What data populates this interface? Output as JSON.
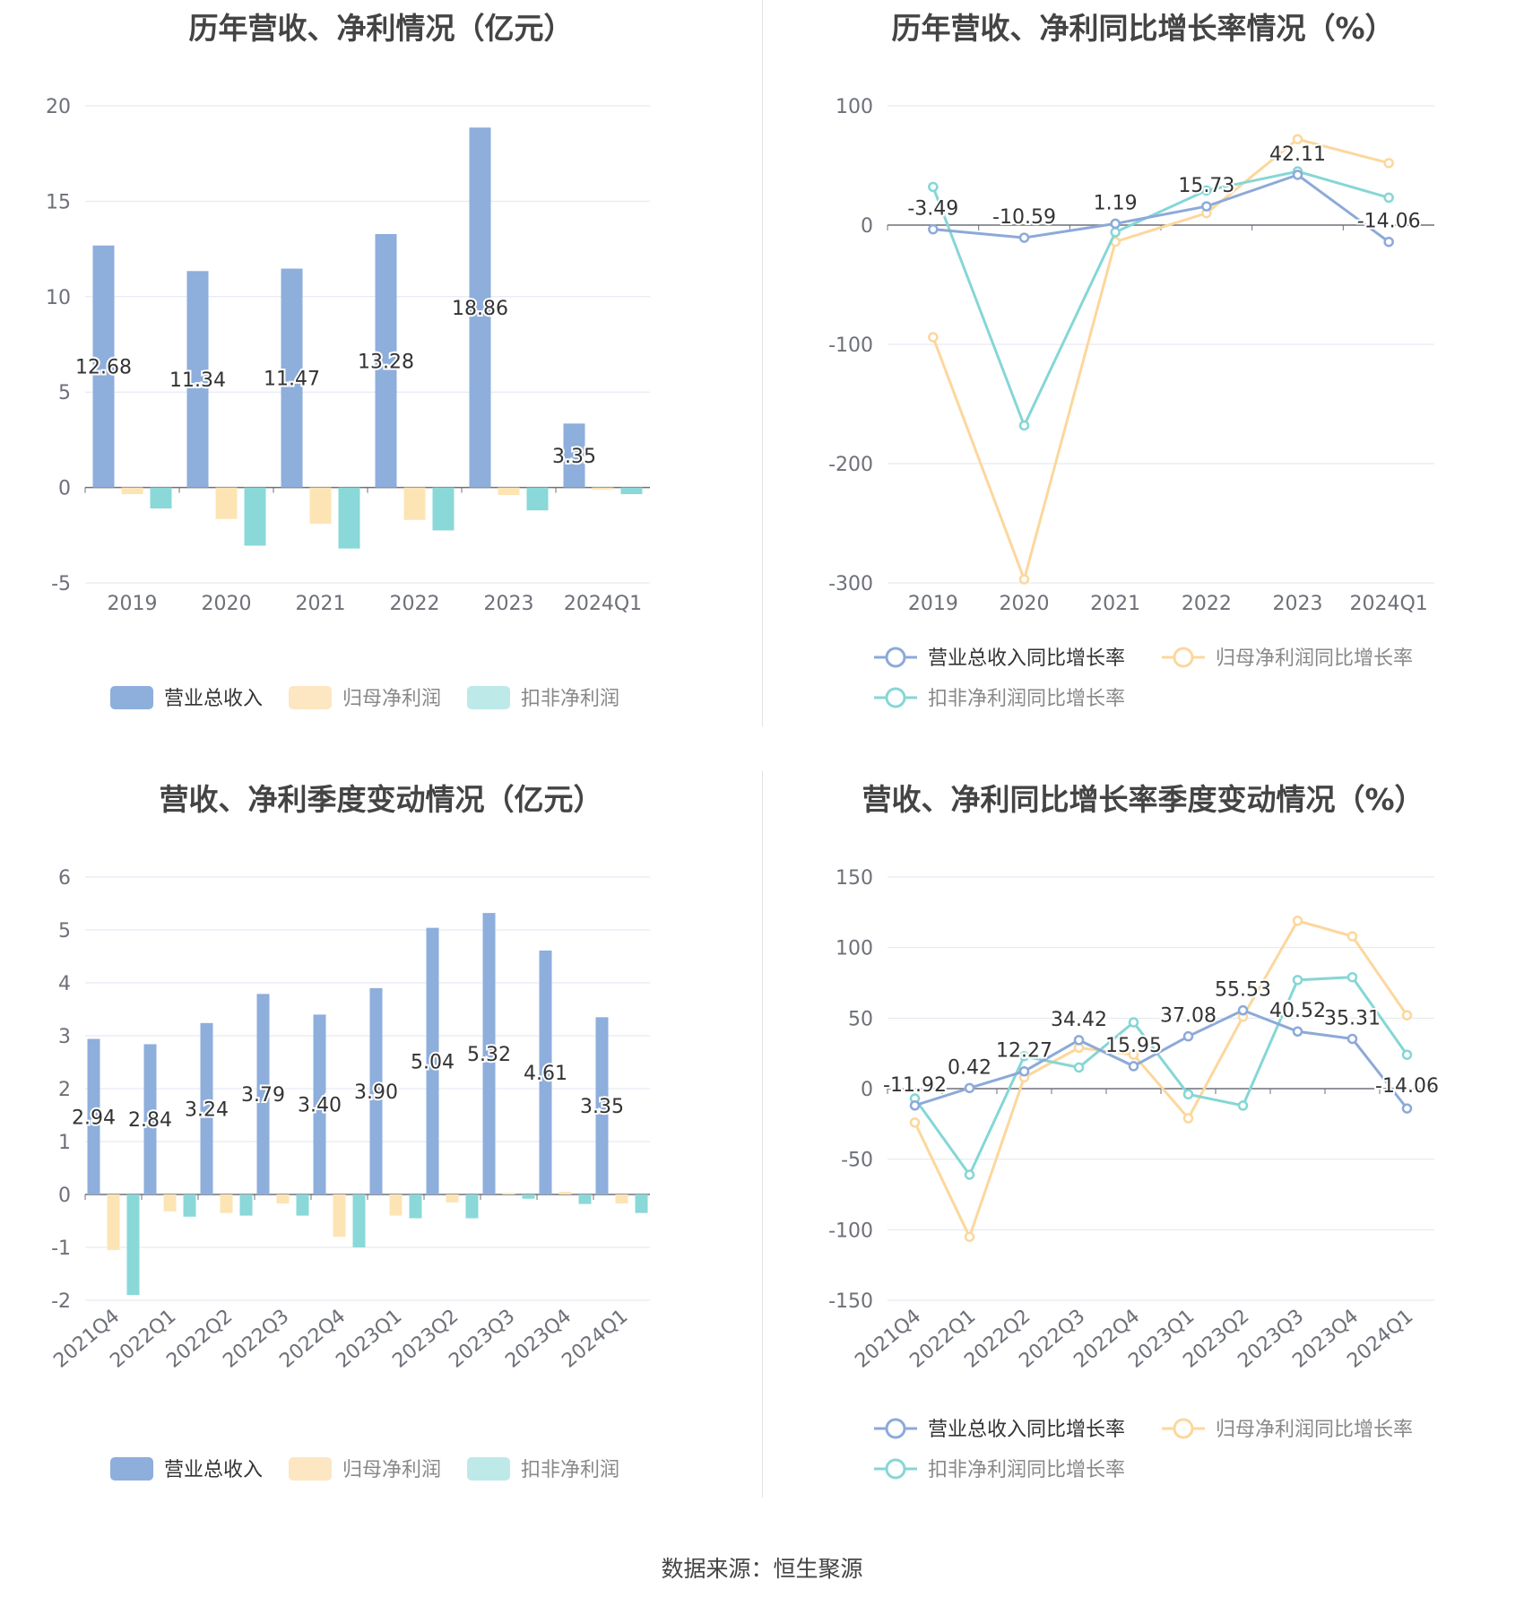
{
  "footer": {
    "source": "数据来源：恒生聚源"
  },
  "colors": {
    "revenue": "#8eaedc",
    "net_profit": "#fde4b4",
    "deducted_profit": "#8ad8d8",
    "revenue_line": "#8ca9d9",
    "net_line": "#fcd79c",
    "deducted_line": "#86d6d6",
    "legend_revenue": "#8eaedc",
    "legend_net": "#fde6c2",
    "legend_deducted": "#bde9e9"
  },
  "chart_data": [
    {
      "type": "bar",
      "title": "历年营收、净利情况（亿元）",
      "categories": [
        "2019",
        "2020",
        "2021",
        "2022",
        "2023",
        "2024Q1"
      ],
      "ylim": [
        -5,
        20
      ],
      "yticks": [
        "-5",
        "0",
        "5",
        "10",
        "15",
        "20"
      ],
      "series": [
        {
          "name": "营业总收入",
          "values": [
            12.68,
            11.34,
            11.47,
            13.28,
            18.86,
            3.35
          ],
          "labels": [
            "12.68",
            "11.34",
            "11.47",
            "13.28",
            "18.86",
            "3.35"
          ]
        },
        {
          "name": "归母净利润",
          "values": [
            -0.35,
            -1.65,
            -1.9,
            -1.7,
            -0.4,
            -0.12
          ]
        },
        {
          "name": "扣非净利润",
          "values": [
            -1.1,
            -3.05,
            -3.2,
            -2.25,
            -1.2,
            -0.35
          ]
        }
      ],
      "grid": true,
      "legend": "bottom"
    },
    {
      "type": "line",
      "title": "历年营收、净利同比增长率情况（%）",
      "categories": [
        "2019",
        "2020",
        "2021",
        "2022",
        "2023",
        "2024Q1"
      ],
      "ylim": [
        -300,
        100
      ],
      "yticks": [
        "-300",
        "-200",
        "-100",
        "0",
        "100"
      ],
      "series": [
        {
          "name": "营业总收入同比增长率",
          "values": [
            -3.49,
            -10.59,
            1.19,
            15.73,
            42.11,
            -14.06
          ],
          "labels": [
            "-3.49",
            "-10.59",
            "1.19",
            "15.73",
            "42.11",
            "-14.06"
          ]
        },
        {
          "name": "归母净利润同比增长率",
          "values": [
            -94,
            -297,
            -14,
            10,
            72,
            52
          ]
        },
        {
          "name": "扣非净利润同比增长率",
          "values": [
            32,
            -168,
            -6,
            29,
            45,
            23
          ]
        }
      ],
      "grid": true,
      "legend": "bottom"
    },
    {
      "type": "bar",
      "title": "营收、净利季度变动情况（亿元）",
      "categories": [
        "2021Q4",
        "2022Q1",
        "2022Q2",
        "2022Q3",
        "2022Q4",
        "2023Q1",
        "2023Q2",
        "2023Q3",
        "2023Q4",
        "2024Q1"
      ],
      "ylim": [
        -2,
        6
      ],
      "yticks": [
        "-2",
        "-1",
        "0",
        "1",
        "2",
        "3",
        "4",
        "5",
        "6"
      ],
      "series": [
        {
          "name": "营业总收入",
          "values": [
            2.94,
            2.84,
            3.24,
            3.79,
            3.4,
            3.9,
            5.04,
            5.32,
            4.61,
            3.35
          ],
          "labels": [
            "2.94",
            "2.84",
            "3.24",
            "3.79",
            "3.40",
            "3.90",
            "5.04",
            "5.32",
            "4.61",
            "3.35"
          ]
        },
        {
          "name": "归母净利润",
          "values": [
            -1.05,
            -0.32,
            -0.35,
            -0.17,
            -0.8,
            -0.4,
            -0.15,
            0.03,
            0.05,
            -0.17
          ]
        },
        {
          "name": "扣非净利润",
          "values": [
            -1.9,
            -0.42,
            -0.4,
            -0.4,
            -1.0,
            -0.45,
            -0.45,
            -0.08,
            -0.18,
            -0.35
          ]
        }
      ],
      "grid": true,
      "legend": "bottom"
    },
    {
      "type": "line",
      "title": "营收、净利同比增长率季度变动情况（%）",
      "categories": [
        "2021Q4",
        "2022Q1",
        "2022Q2",
        "2022Q3",
        "2022Q4",
        "2023Q1",
        "2023Q2",
        "2023Q3",
        "2023Q4",
        "2024Q1"
      ],
      "ylim": [
        -150,
        150
      ],
      "yticks": [
        "-150",
        "-100",
        "-50",
        "0",
        "50",
        "100",
        "150"
      ],
      "series": [
        {
          "name": "营业总收入同比增长率",
          "values": [
            -11.92,
            0.42,
            12.27,
            34.42,
            15.95,
            37.08,
            55.53,
            40.52,
            35.31,
            -14.06
          ],
          "labels": [
            "-11.92",
            "0.42",
            "12.27",
            "34.42",
            "15.95",
            "37.08",
            "55.53",
            "40.52",
            "35.31",
            "-14.06"
          ]
        },
        {
          "name": "归母净利润同比增长率",
          "values": [
            -24,
            -105,
            8,
            29,
            24,
            -21,
            51,
            119,
            108,
            52
          ]
        },
        {
          "name": "扣非净利润同比增长率",
          "values": [
            -7,
            -61,
            23,
            15,
            47,
            -4,
            -12,
            77,
            79,
            24
          ]
        }
      ],
      "grid": true,
      "legend": "bottom"
    }
  ]
}
